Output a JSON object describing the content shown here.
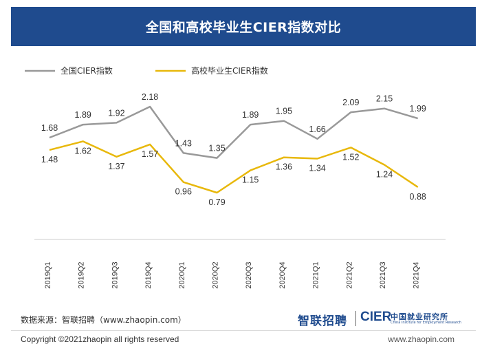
{
  "header": {
    "title": "全国和高校毕业生CIER指数对比"
  },
  "chart_data": {
    "type": "line",
    "categories": [
      "2019Q1",
      "2019Q2",
      "2019Q3",
      "2019Q4",
      "2020Q1",
      "2020Q2",
      "2020Q3",
      "2020Q4",
      "2021Q1",
      "2021Q2",
      "2021Q3",
      "2021Q4"
    ],
    "series": [
      {
        "name": "全国CIER指数",
        "color": "#999999",
        "values": [
          1.68,
          1.89,
          1.92,
          2.18,
          1.43,
          1.35,
          1.89,
          1.95,
          1.66,
          2.09,
          2.15,
          1.99
        ]
      },
      {
        "name": "高校毕业生CIER指数",
        "color": "#e8b80b",
        "values": [
          1.48,
          1.62,
          1.37,
          1.57,
          0.96,
          0.79,
          1.15,
          1.36,
          1.34,
          1.52,
          1.24,
          0.88
        ]
      }
    ],
    "legend_position": "top-left",
    "grid": false
  },
  "footer": {
    "source": "数据来源：智联招聘（www.zhaopin.com）",
    "copyright": "Copyright ©2021zhaopin all rights reserved",
    "website": "www.zhaopin.com"
  },
  "logos": {
    "zhaopin": "智联招聘",
    "cier": "CIER",
    "cier_cn": "中国就业研究所",
    "cier_en": "China Institute for Employment Research"
  }
}
